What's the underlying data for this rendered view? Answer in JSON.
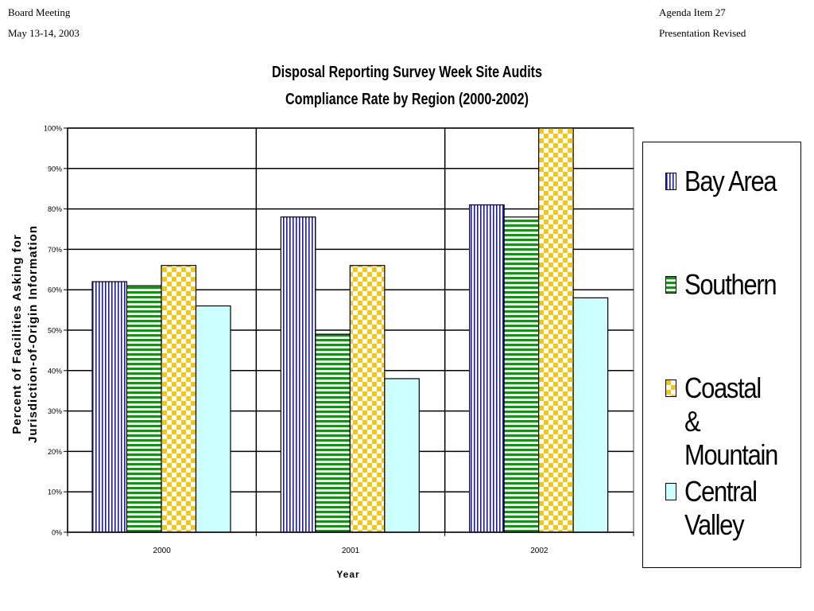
{
  "header": {
    "left_line1": "Board Meeting",
    "left_line2": "May 13-14, 2003",
    "right_line1": "Agenda Item 27",
    "right_line2": "Presentation Revised"
  },
  "chart_data": {
    "type": "bar",
    "title": "Disposal Reporting Survey Week Site Audits",
    "subtitle": "Compliance Rate by Region (2000-2002)",
    "xlabel": "Year",
    "ylabel_line1": "Percent of Facilities Asking for",
    "ylabel_line2": "Jurisdiction-of-Origin Information",
    "categories": [
      "2000",
      "2001",
      "2002"
    ],
    "ylim": [
      0,
      100
    ],
    "yticks": [
      0,
      10,
      20,
      30,
      40,
      50,
      60,
      70,
      80,
      90,
      100
    ],
    "ytick_labels": [
      "0%",
      "10%",
      "20%",
      "30%",
      "40%",
      "50%",
      "60%",
      "70%",
      "80%",
      "90%",
      "100%"
    ],
    "grid": true,
    "legend_position": "right",
    "series": [
      {
        "name": "Bay Area",
        "values": [
          62,
          78,
          81
        ],
        "pattern": "vertical-stripes",
        "color": "#1a1aa6"
      },
      {
        "name": "Southern",
        "values": [
          61,
          49,
          78
        ],
        "pattern": "horizontal-stripes",
        "color": "#1f8a1f"
      },
      {
        "name": "Coastal & Mountain",
        "values": [
          66,
          66,
          100
        ],
        "pattern": "checker",
        "color": "#f2c718"
      },
      {
        "name": "Central Valley",
        "values": [
          56,
          38,
          58
        ],
        "pattern": "solid",
        "color": "#ccffff"
      }
    ]
  },
  "legend": {
    "items": [
      "Bay Area",
      "Southern",
      "Coastal &\nMountain",
      "Central\nValley"
    ]
  }
}
